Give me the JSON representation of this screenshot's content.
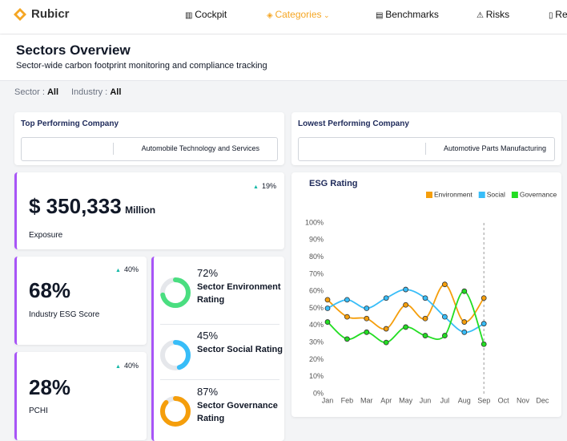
{
  "nav": {
    "brand": "Rubicr",
    "items": [
      "Cockpit",
      "Categories",
      "Benchmarks",
      "Risks",
      "Re"
    ]
  },
  "header": {
    "title": "Sectors Overview",
    "subtitle": "Sector-wide carbon footprint monitoring and compliance tracking"
  },
  "filters": [
    {
      "label": "Sector :",
      "value": "All"
    },
    {
      "label": "Industry :",
      "value": "All"
    }
  ],
  "top_company": {
    "title": "Top Performing Company",
    "name": "Automobile Technology and Services"
  },
  "lowest_company": {
    "title": "Lowest Performing Company",
    "name": "Automotive Parts Manufacturing"
  },
  "exposure": {
    "value": "$ 350,333",
    "unit": "Million",
    "label": "Exposure",
    "change": "19%"
  },
  "industry_score": {
    "value": "68%",
    "label": "Industry ESG Score",
    "change": "40%"
  },
  "pchi": {
    "value": "28%",
    "label": "PCHI",
    "change": "40%"
  },
  "ratings": [
    {
      "value": 72,
      "value_label": "72%",
      "label": "Sector Environment Rating",
      "color": "#4ade80"
    },
    {
      "value": 45,
      "value_label": "45%",
      "label": "Sector Social Rating",
      "color": "#38bdf8"
    },
    {
      "value": 87,
      "value_label": "87%",
      "label": "Sector Governance Rating",
      "color": "#f59e0b"
    }
  ],
  "chart_data": {
    "type": "line",
    "title": "ESG Rating",
    "categories": [
      "Jan",
      "Feb",
      "Mar",
      "Apr",
      "May",
      "Jun",
      "Jul",
      "Aug",
      "Sep",
      "Oct",
      "Nov",
      "Dec"
    ],
    "series": [
      {
        "name": "Environment",
        "color": "#f59e0b",
        "values": [
          55,
          45,
          44,
          38,
          52,
          44,
          64,
          42,
          56,
          null,
          null,
          null
        ]
      },
      {
        "name": "Social",
        "color": "#38bdf8",
        "values": [
          50,
          55,
          50,
          56,
          61,
          56,
          45,
          36,
          41,
          null,
          null,
          null
        ]
      },
      {
        "name": "Governance",
        "color": "#22dd22",
        "values": [
          42,
          32,
          36,
          30,
          39,
          34,
          34,
          60,
          29,
          null,
          null,
          null
        ]
      }
    ],
    "ylim": [
      0,
      100
    ],
    "yticks": [
      {
        "value": 0,
        "label": "0%"
      },
      {
        "value": 10,
        "label": "10%"
      },
      {
        "value": 20,
        "label": "20%"
      },
      {
        "value": 30,
        "label": "30%"
      },
      {
        "value": 40,
        "label": "40%"
      },
      {
        "value": 50,
        "label": "50%"
      },
      {
        "value": 60,
        "label": "60%"
      },
      {
        "value": 70,
        "label": "70%"
      },
      {
        "value": 80,
        "label": "80%"
      },
      {
        "value": 90,
        "label": "90%"
      },
      {
        "value": 100,
        "label": "100%"
      }
    ]
  }
}
